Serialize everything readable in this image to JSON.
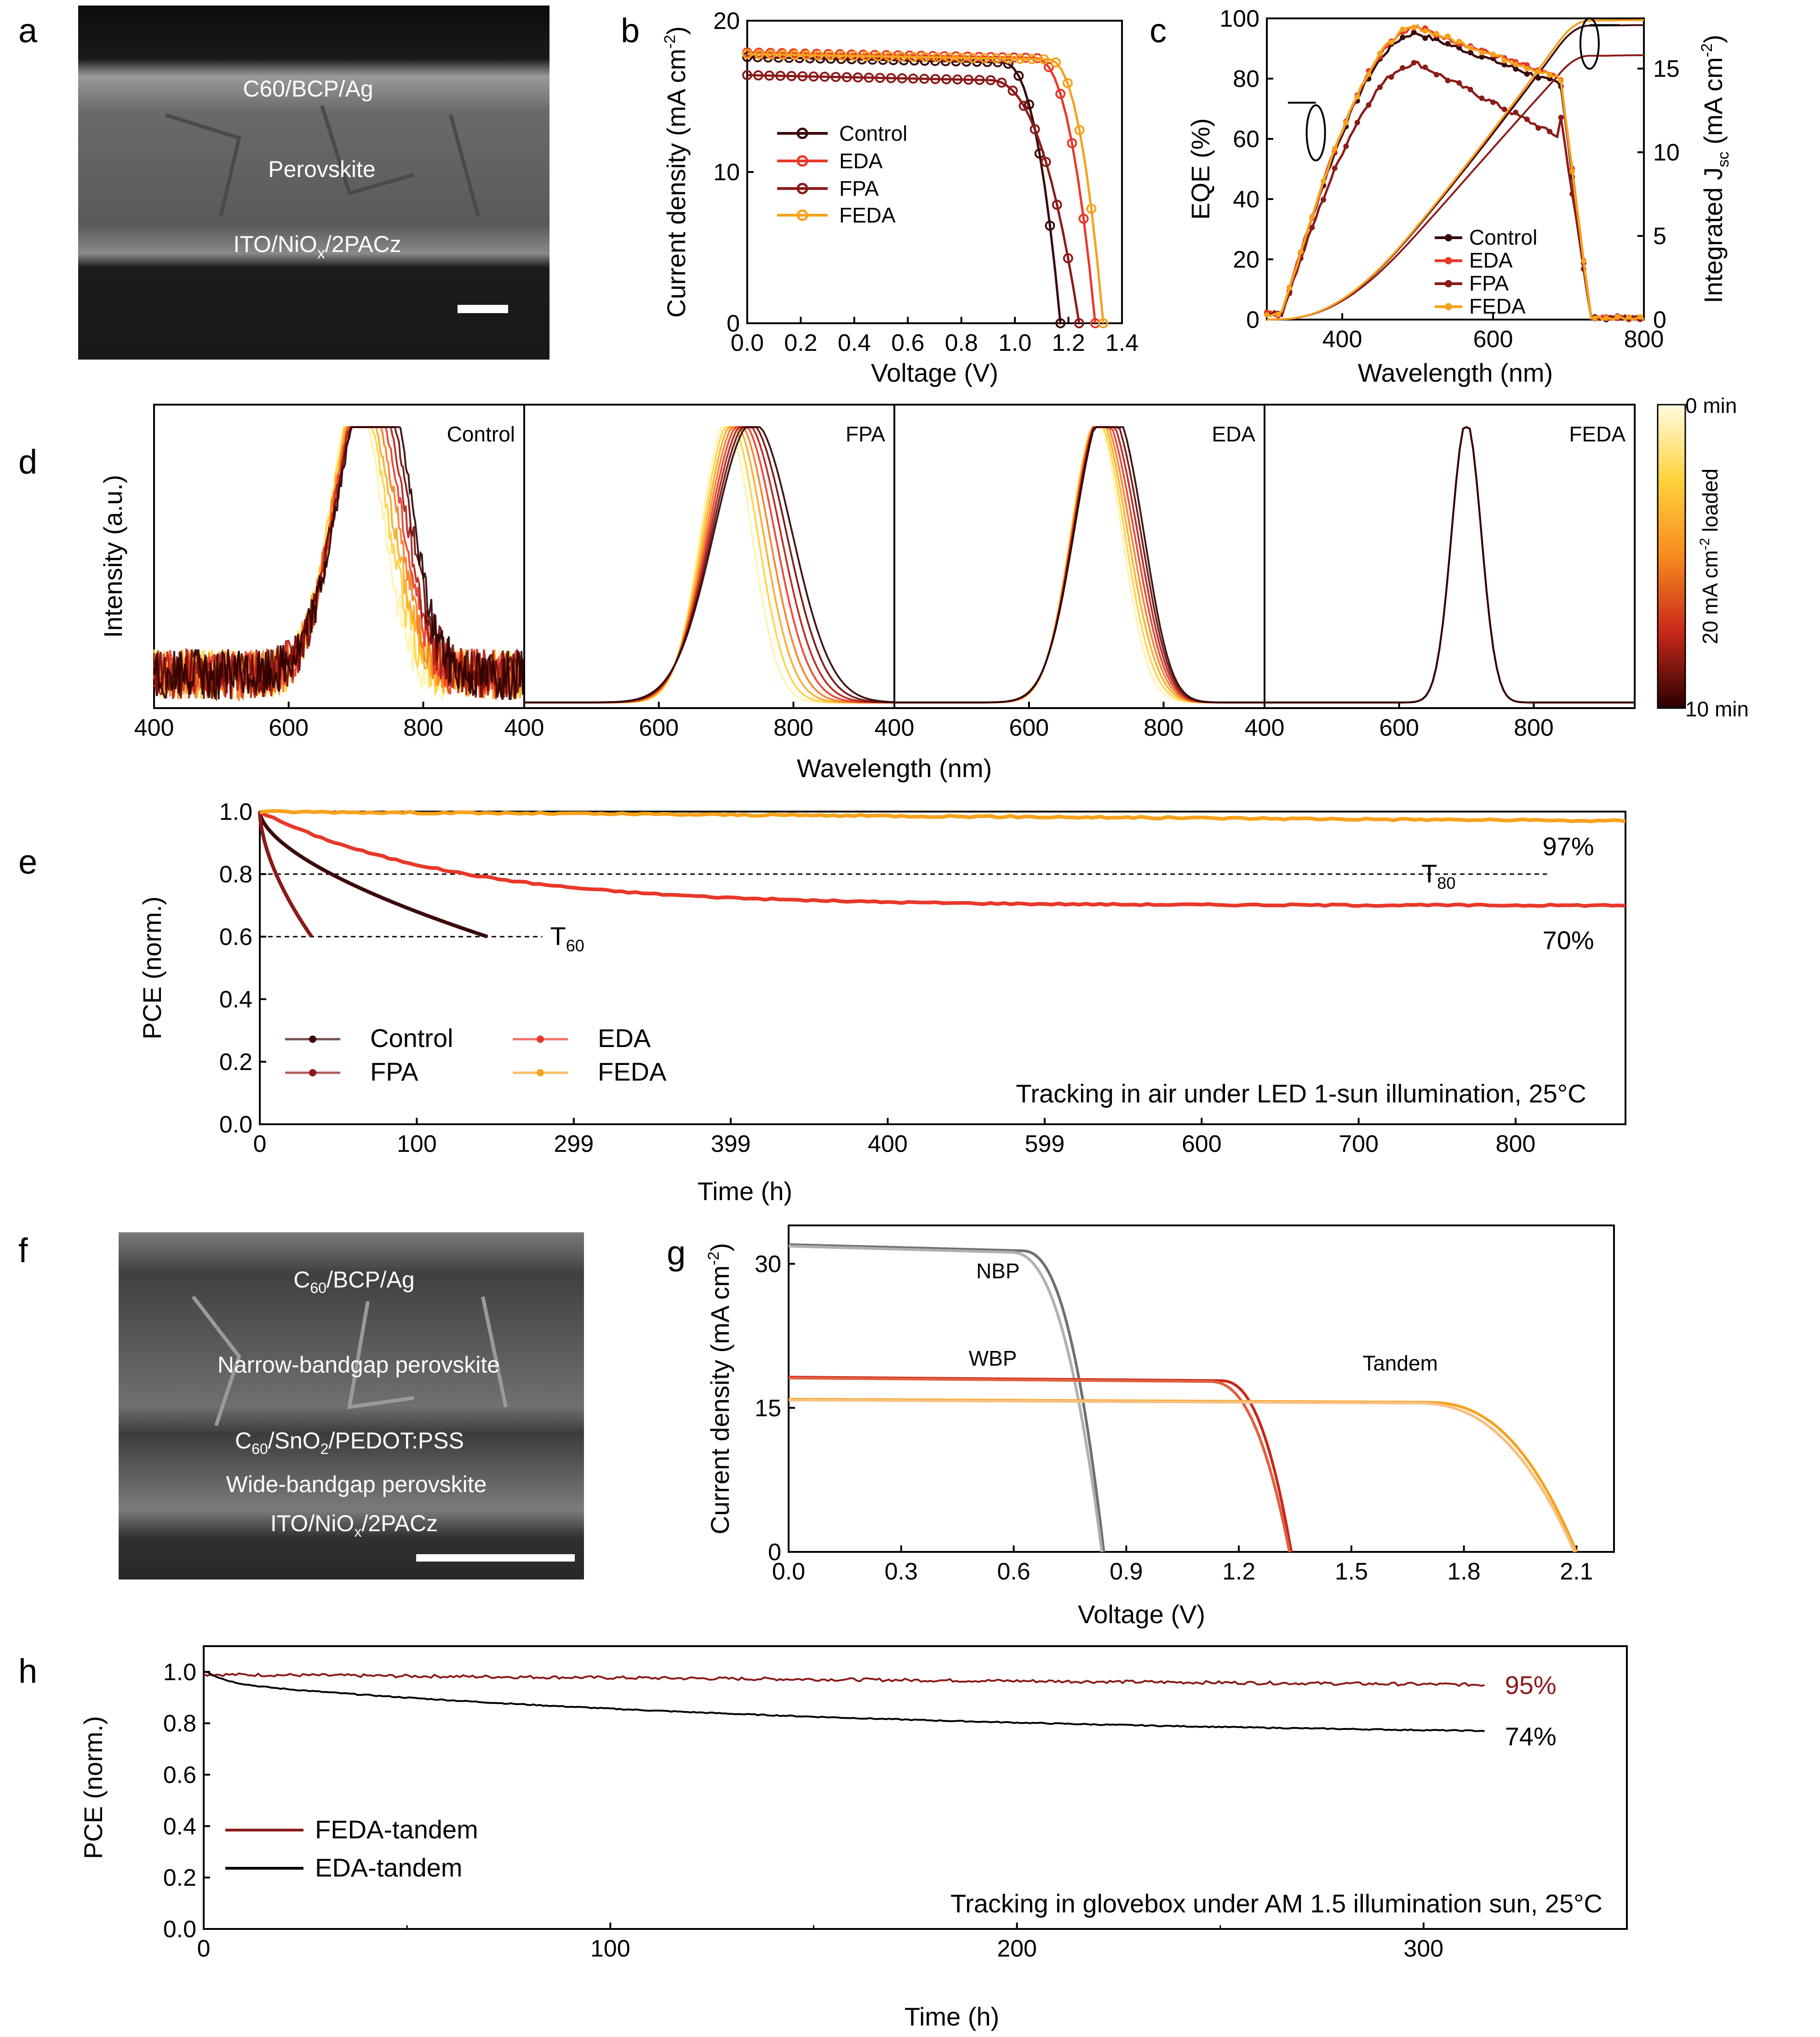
{
  "panels": {
    "a": {
      "label": "a",
      "layers": [
        "C60/BCP/Ag",
        "Perovskite"
      ],
      "bottom_layer": {
        "base": "ITO/NiO",
        "sub": "x",
        "rest": "/2PACz"
      }
    },
    "f": {
      "label": "f",
      "top_layer": {
        "base": "C",
        "sub": "60",
        "rest": "/BCP/Ag"
      },
      "narrow": "Narrow-bandgap perovskite",
      "middle_layer": {
        "a": "C",
        "a_sub": "60",
        "b": "/SnO",
        "b_sub": "2",
        "c": "/PEDOT:PSS"
      },
      "wide": "Wide-bandgap perovskite",
      "bottom_layer": {
        "base": "ITO/NiO",
        "sub": "x",
        "rest": "/2PACz"
      }
    }
  },
  "colors": {
    "control": "#3a0a0a",
    "eda": "#e8382a",
    "fpa": "#8b1a1a",
    "feda": "#f5a21c",
    "black": "#000000"
  },
  "chart_data": [
    {
      "id": "b",
      "label": "b",
      "type": "line",
      "xlabel": "Voltage (V)",
      "ylabel_main": "Current density (mA cm",
      "ylabel_sup": "-2",
      "ylabel_end": ")",
      "xlim": [
        0,
        1.4
      ],
      "ylim": [
        0,
        20
      ],
      "xticks": [
        "0.0",
        "0.2",
        "0.4",
        "0.6",
        "0.8",
        "1.0",
        "1.2",
        "1.4"
      ],
      "yticks": [
        "0",
        "10",
        "20"
      ],
      "series": [
        {
          "name": "Control",
          "jsc": 17.6,
          "voc": 1.17,
          "knee": 0.95
        },
        {
          "name": "EDA",
          "jsc": 17.9,
          "voc": 1.3,
          "knee": 1.07
        },
        {
          "name": "FPA",
          "jsc": 16.4,
          "voc": 1.24,
          "knee": 0.9
        },
        {
          "name": "FEDA",
          "jsc": 17.8,
          "voc": 1.33,
          "knee": 1.12
        }
      ]
    },
    {
      "id": "c",
      "label": "c",
      "type": "line",
      "xlabel": "Wavelength (nm)",
      "ylabel_left": "EQE (%)",
      "ylabel_right_main": "Integrated J",
      "ylabel_right_sub": "sc",
      "ylabel_right_end": " (mA cm",
      "ylabel_right_sup": "-2",
      "ylabel_right_close": ")",
      "xlim": [
        300,
        800
      ],
      "ylim": [
        0,
        100
      ],
      "y2lim": [
        0,
        18
      ],
      "xticks": [
        "400",
        "600",
        "800"
      ],
      "yticks": [
        "0",
        "20",
        "40",
        "60",
        "80",
        "100"
      ],
      "y2ticks": [
        "0",
        "5",
        "10",
        "15"
      ],
      "series": [
        {
          "name": "Control",
          "eqe_peak": 95,
          "int_jsc": 17.6
        },
        {
          "name": "EDA",
          "eqe_peak": 97,
          "int_jsc": 17.9
        },
        {
          "name": "FPA",
          "eqe_peak": 85,
          "int_jsc": 15.8
        },
        {
          "name": "FEDA",
          "eqe_peak": 97,
          "int_jsc": 17.9
        }
      ]
    },
    {
      "id": "d",
      "label": "d",
      "type": "line",
      "xlabel": "Wavelength (nm)",
      "ylabel": "Intensity (a.u.)",
      "xlim": [
        400,
        950
      ],
      "xticks": [
        "400",
        "600",
        "800"
      ],
      "subpanels": [
        {
          "name": "Control",
          "peak": 700,
          "shift_to": 720,
          "noise": true
        },
        {
          "name": "FPA",
          "peak": 700,
          "shift_to": 740,
          "noise": false
        },
        {
          "name": "EDA",
          "peak": 700,
          "shift_to": 710,
          "noise": false
        },
        {
          "name": "FEDA",
          "peak": 700,
          "shift_to": 700,
          "noise": false
        }
      ],
      "colorbar": {
        "top": "0 min",
        "bottom": "10 min",
        "label_main": "20 mA cm",
        "label_sup": "-2",
        "label_end": " loaded"
      }
    },
    {
      "id": "e",
      "label": "e",
      "type": "line",
      "xlabel": "Time (h)",
      "ylabel": "PCE (norm.)",
      "xlim": [
        0,
        870
      ],
      "ylim": [
        0,
        1.0
      ],
      "xticks": [
        "0",
        "100",
        "299",
        "399",
        "400",
        "599",
        "600",
        "700",
        "800"
      ],
      "yticks": [
        "0.0",
        "0.2",
        "0.4",
        "0.6",
        "0.8",
        "1.0"
      ],
      "series": [
        {
          "name": "Control",
          "end_time": 145,
          "end_value": 0.6
        },
        {
          "name": "FPA",
          "end_time": 33,
          "end_value": 0.6
        },
        {
          "name": "EDA",
          "end_time": 870,
          "end_value": 0.7
        },
        {
          "name": "FEDA",
          "end_time": 870,
          "end_value": 0.97
        }
      ],
      "annotations": {
        "t80": "T",
        "t80_sub": "80",
        "t60": "T",
        "t60_sub": "60",
        "pct_feda": "97%",
        "pct_eda": "70%",
        "note": "Tracking in air under LED 1-sun illumination, 25°C"
      }
    },
    {
      "id": "g",
      "label": "g",
      "type": "line",
      "xlabel": "Voltage (V)",
      "ylabel_main": "Current density (mA cm",
      "ylabel_sup": "-2",
      "ylabel_end": ")",
      "xlim": [
        0,
        2.2
      ],
      "ylim": [
        0,
        34
      ],
      "xticks": [
        "0.0",
        "0.3",
        "0.6",
        "0.9",
        "1.2",
        "1.5",
        "1.8",
        "2.1"
      ],
      "yticks": [
        "0",
        "15",
        "30"
      ],
      "series": [
        {
          "name": "NBP",
          "jsc": 32.0,
          "voc": 0.84
        },
        {
          "name": "WBP",
          "jsc": 18.2,
          "voc": 1.34
        },
        {
          "name": "Tandem",
          "jsc": 15.9,
          "voc": 2.1
        }
      ]
    },
    {
      "id": "h",
      "label": "h",
      "type": "line",
      "xlabel": "Time (h)",
      "ylabel": "PCE (norm.)",
      "xlim": [
        0,
        350
      ],
      "ylim": [
        0,
        1.1
      ],
      "xticks": [
        "0",
        "100",
        "200",
        "300"
      ],
      "yticks": [
        "0.0",
        "0.2",
        "0.4",
        "0.6",
        "0.8",
        "1.0"
      ],
      "series": [
        {
          "name": "FEDA-tandem",
          "end_time": 315,
          "end_value": 0.95
        },
        {
          "name": "EDA-tandem",
          "end_time": 315,
          "end_value": 0.74
        }
      ],
      "annotations": {
        "pct_feda": "95%",
        "pct_eda": "74%",
        "note": "Tracking in glovebox under AM 1.5 illumination sun, 25°C"
      }
    }
  ]
}
